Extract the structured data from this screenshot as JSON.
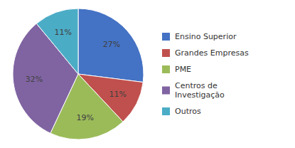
{
  "chart_data": {
    "type": "pie",
    "categories": [
      "Ensino Superior",
      "Grandes Empresas",
      "PME",
      "Centros de\nInvestigação",
      "Outros"
    ],
    "values": [
      27,
      11,
      19,
      32,
      11
    ],
    "value_labels": [
      "27%",
      "11%",
      "19%",
      "32%",
      "11%"
    ],
    "colors": [
      "#4472c4",
      "#c0504d",
      "#9bbb59",
      "#8064a2",
      "#4bacc6"
    ],
    "data_labels": true,
    "legend": "right"
  }
}
